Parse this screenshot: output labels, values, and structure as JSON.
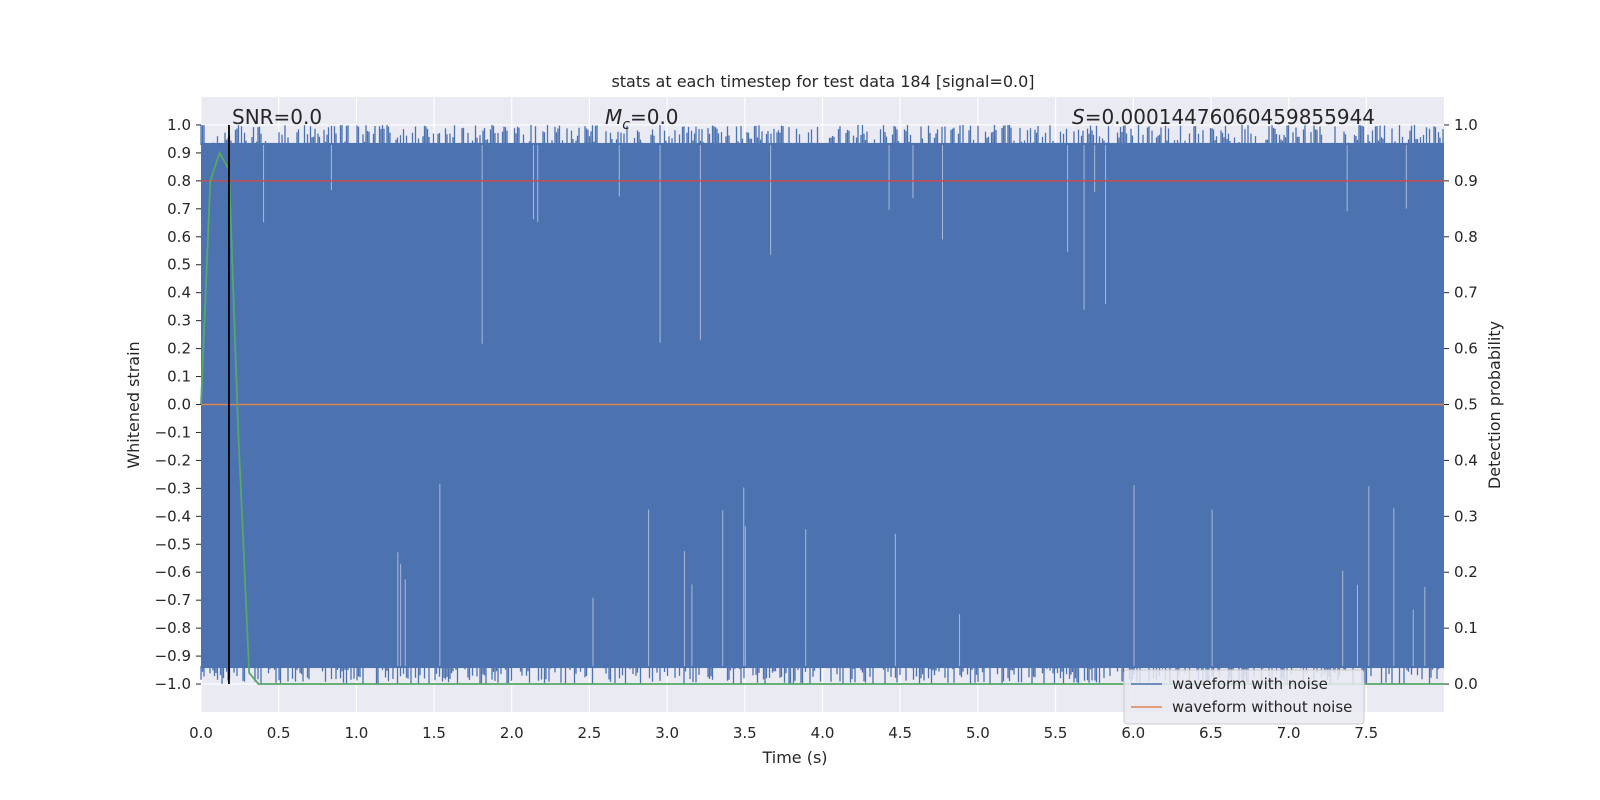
{
  "chart_data": {
    "type": "line",
    "title": "stats at each timestep for test data 184 [signal=0.0]",
    "xlabel": "Time (s)",
    "ylabel": "Whitened strain",
    "y2label": "Detection probability",
    "xlim": [
      0,
      8
    ],
    "ylim": [
      -1.1,
      1.1
    ],
    "y2lim": [
      -0.05,
      1.05
    ],
    "grid": true,
    "legend_position": "lower-right",
    "x_ticks": [
      "0.0",
      "0.5",
      "1.0",
      "1.5",
      "2.0",
      "2.5",
      "3.0",
      "3.5",
      "4.0",
      "4.5",
      "5.0",
      "5.5",
      "6.0",
      "6.5",
      "7.0",
      "7.5"
    ],
    "y_ticks": [
      "1.0",
      "0.9",
      "0.8",
      "0.7",
      "0.6",
      "0.5",
      "0.4",
      "0.3",
      "0.2",
      "0.1",
      "0.0",
      "−0.1",
      "−0.2",
      "−0.3",
      "−0.4",
      "−0.5",
      "−0.6",
      "−0.7",
      "−0.8",
      "−0.9",
      "−1.0"
    ],
    "y2_ticks": [
      "1.0",
      "0.9",
      "0.8",
      "0.7",
      "0.6",
      "0.5",
      "0.4",
      "0.3",
      "0.2",
      "0.1",
      "0.0"
    ],
    "annotations": {
      "snr": "SNR=0.0",
      "mc_symbol": "M",
      "mc_sub": "c",
      "mc_value": "=0.0",
      "s_symbol": "S",
      "s_value": "=0.00014476060459855944"
    },
    "series": [
      {
        "name": "waveform with noise",
        "color": "#4c72b0",
        "axis": "left",
        "description_values": "dense noise filling [-1, 1]"
      },
      {
        "name": "waveform without noise",
        "color": "#dd8452",
        "axis": "left",
        "x": [
          0,
          8
        ],
        "y": [
          0.0,
          0.0
        ]
      },
      {
        "color": "#55a868",
        "axis": "right",
        "x": [
          0.0,
          0.06,
          0.12,
          0.18,
          0.24,
          0.31,
          0.37,
          0.5,
          1.0,
          2.0,
          4.0,
          6.0,
          8.0
        ],
        "y": [
          0.5,
          0.9,
          0.95,
          0.92,
          0.45,
          0.02,
          0.0,
          0.0,
          0.0,
          0.0,
          0.0,
          0.0,
          0.0
        ]
      }
    ],
    "threshold_line": {
      "y2": 0.9,
      "color": "#c44e52"
    },
    "event_line": {
      "x": 0.18,
      "color": "#000000"
    }
  },
  "colors": {
    "plot_background": "#eaeaf2",
    "grid": "#ffffff"
  }
}
